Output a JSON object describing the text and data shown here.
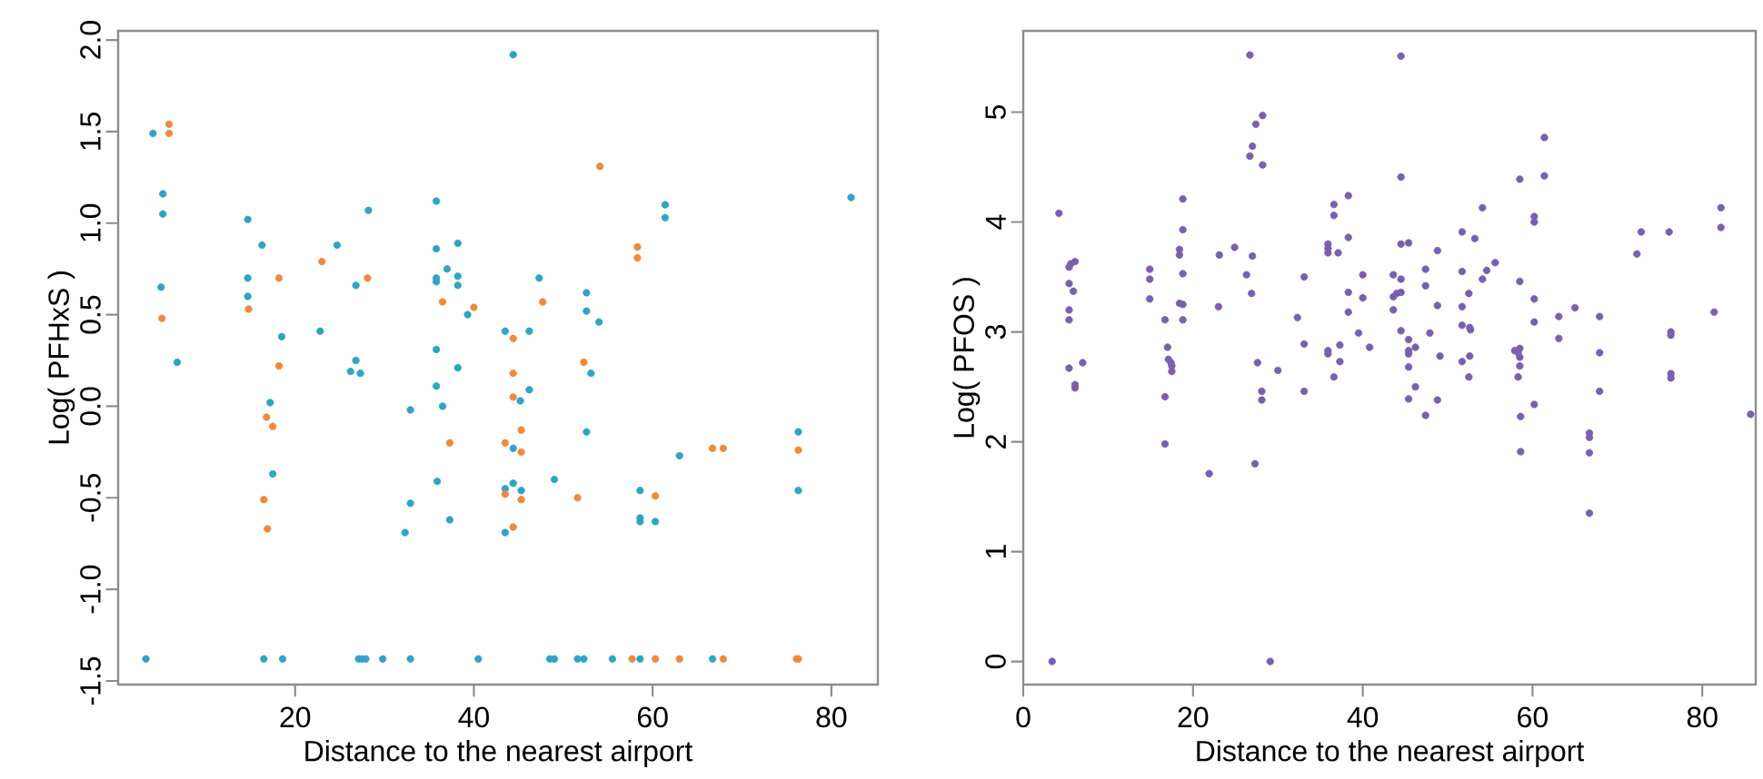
{
  "chart_data": [
    {
      "type": "scatter",
      "xlabel": "Distance to the nearest airport",
      "ylabel": "Log( PFHxS )",
      "marker": "circle",
      "xlim": [
        0.2,
        85.2
      ],
      "ylim": [
        -1.52,
        2.05
      ],
      "xticks": [
        20,
        40,
        60,
        80
      ],
      "yticks": [
        -1.5,
        {
          "value": -1,
          "label": "-1.0"
        },
        -0.5,
        {
          "value": 0,
          "label": "0.0"
        },
        0.5,
        {
          "value": 1,
          "label": "1.0"
        },
        1.5,
        {
          "value": 2,
          "label": "2.0"
        }
      ],
      "series": [
        {
          "color": "#2fa4c4",
          "x": [
            4.1,
            5.2,
            5.2,
            5.0,
            6.8,
            3.3,
            14.7,
            14.7,
            14.7,
            16.3,
            18.5,
            17.2,
            17.5,
            16.5,
            18.6,
            22.8,
            24.7,
            28.2,
            26.8,
            26.2,
            26.8,
            27.3,
            27.1,
            27.5,
            27.9,
            29.8,
            32.9,
            32.9,
            32.9,
            32.3,
            35.8,
            35.8,
            35.8,
            35.8,
            35.8,
            35.8,
            36.5,
            35.9,
            37.3,
            37.0,
            38.2,
            38.2,
            38.2,
            38.2,
            39.3,
            44.4,
            47.3,
            43.5,
            46.2,
            45.2,
            46.2,
            44.4,
            43.5,
            44.4,
            45.3,
            43.5,
            49.0,
            52.6,
            52.6,
            54.0,
            53.1,
            52.6,
            61.4,
            61.4,
            63.0,
            58.6,
            58.6,
            58.6,
            60.3,
            76.3,
            76.3,
            82.2,
            40.5,
            48.5,
            49.0,
            51.6,
            52.3,
            55.5,
            58.6,
            66.7
          ],
          "values": [
            1.49,
            1.16,
            1.05,
            0.65,
            0.24,
            -1.38,
            1.02,
            0.7,
            0.6,
            0.88,
            0.38,
            0.02,
            -0.37,
            -1.38,
            -1.38,
            0.41,
            0.88,
            1.07,
            0.66,
            0.19,
            0.25,
            0.18,
            -1.38,
            -1.38,
            -1.38,
            -1.38,
            -1.38,
            -0.02,
            -0.53,
            -0.69,
            1.12,
            0.86,
            0.7,
            0.68,
            0.31,
            0.11,
            0.0,
            -0.41,
            -0.62,
            0.75,
            0.89,
            0.71,
            0.66,
            0.21,
            0.5,
            1.92,
            0.7,
            0.41,
            0.41,
            0.03,
            0.09,
            -0.23,
            -0.45,
            -0.42,
            -0.46,
            -0.69,
            -0.4,
            0.62,
            0.52,
            0.46,
            0.18,
            -0.14,
            1.1,
            1.03,
            -0.27,
            -0.46,
            -0.61,
            -0.63,
            -0.63,
            -0.14,
            -0.46,
            1.14,
            -1.38,
            -1.38,
            -1.38,
            -1.38,
            -1.38,
            -1.38,
            -1.38,
            -1.38
          ]
        },
        {
          "color": "#f0893b",
          "x": [
            5.9,
            5.9,
            5.1,
            14.8,
            18.2,
            18.2,
            16.8,
            17.5,
            16.5,
            16.9,
            23.0,
            28.1,
            36.5,
            37.3,
            40.0,
            54.1,
            58.3,
            58.3,
            47.7,
            44.4,
            44.4,
            44.4,
            45.3,
            45.3,
            43.5,
            43.5,
            45.3,
            44.4,
            52.3,
            51.6,
            60.3,
            66.7,
            67.9,
            76.3,
            57.7,
            60.3,
            63.0,
            67.9,
            76.1,
            76.3
          ],
          "values": [
            1.54,
            1.49,
            0.48,
            0.53,
            0.7,
            0.22,
            -0.06,
            -0.11,
            -0.51,
            -0.67,
            0.79,
            0.7,
            0.57,
            -0.2,
            0.54,
            1.31,
            0.87,
            0.81,
            0.57,
            0.37,
            0.18,
            0.05,
            -0.13,
            -0.25,
            -0.2,
            -0.48,
            -0.51,
            -0.66,
            0.24,
            -0.5,
            -0.49,
            -0.23,
            -0.23,
            -0.24,
            -1.38,
            -1.38,
            -1.38,
            -1.38,
            -1.38,
            -1.38
          ]
        }
      ]
    },
    {
      "type": "scatter",
      "xlabel": "Distance to the nearest airport",
      "ylabel": "Log( PFOS )",
      "marker": "circle",
      "xlim": [
        0,
        86.3
      ],
      "ylim": [
        -0.21,
        5.74
      ],
      "xticks": [
        0,
        20,
        40,
        60,
        80
      ],
      "yticks": [
        0,
        1,
        2,
        3,
        4,
        5
      ],
      "series": [
        {
          "color": "#7a5fb0",
          "x": [
            3.4,
            4.2,
            5.6,
            6.1,
            5.4,
            5.4,
            5.9,
            5.4,
            5.4,
            5.4,
            7.0,
            6.1,
            6.1,
            14.9,
            14.9,
            14.9,
            16.7,
            17.0,
            17.1,
            17.4,
            17.5,
            17.5,
            16.7,
            16.7,
            18.8,
            18.8,
            18.4,
            18.4,
            18.8,
            18.4,
            18.8,
            18.8,
            21.9,
            23.1,
            23.0,
            24.9,
            26.3,
            27.0,
            26.9,
            26.7,
            26.7,
            27.0,
            27.4,
            28.2,
            28.2,
            27.3,
            27.6,
            28.1,
            28.1,
            29.1,
            30.0,
            32.3,
            33.1,
            33.1,
            33.1,
            36.6,
            36.6,
            38.3,
            35.9,
            35.9,
            35.9,
            37.1,
            38.3,
            38.3,
            38.3,
            40.0,
            40.0,
            39.5,
            35.9,
            35.9,
            37.3,
            37.3,
            36.6,
            40.8,
            44.5,
            44.5,
            44.5,
            45.4,
            43.6,
            44.5,
            43.6,
            44.0,
            44.5,
            43.6,
            44.5,
            45.4,
            46.2,
            45.4,
            45.4,
            45.4,
            46.2,
            45.4,
            47.4,
            47.4,
            47.4,
            47.9,
            48.8,
            48.8,
            49.1,
            48.8,
            51.7,
            51.7,
            51.7,
            52.5,
            51.7,
            52.6,
            52.7,
            51.7,
            52.6,
            52.5,
            53.2,
            54.1,
            54.1,
            54.6,
            55.6,
            58.5,
            58.5,
            57.9,
            58.3,
            58.5,
            58.5,
            58.5,
            58.3,
            58.6,
            58.6,
            61.4,
            61.4,
            60.2,
            60.2,
            60.2,
            60.2,
            60.2,
            63.1,
            63.1,
            65.0,
            67.9,
            67.9,
            67.9,
            66.7,
            66.7,
            66.7,
            66.7,
            72.3,
            72.8,
            76.1,
            76.3,
            76.3,
            76.3,
            76.3,
            81.4,
            82.2,
            82.2,
            85.7
          ],
          "values": [
            0.0,
            4.08,
            3.62,
            3.64,
            3.59,
            3.44,
            3.37,
            3.2,
            3.11,
            2.67,
            2.72,
            2.52,
            2.49,
            3.57,
            3.48,
            3.3,
            3.11,
            2.86,
            2.75,
            2.72,
            2.69,
            2.64,
            2.41,
            1.98,
            4.21,
            3.93,
            3.75,
            3.7,
            3.53,
            3.26,
            3.25,
            3.11,
            1.71,
            3.7,
            3.23,
            3.77,
            3.52,
            3.69,
            3.35,
            5.52,
            4.6,
            4.69,
            4.89,
            4.97,
            4.52,
            1.8,
            2.72,
            2.46,
            2.38,
            0.0,
            2.65,
            3.13,
            3.5,
            2.89,
            2.46,
            4.16,
            4.06,
            4.24,
            3.8,
            3.76,
            3.72,
            3.72,
            3.86,
            3.36,
            3.18,
            3.52,
            3.31,
            2.99,
            2.83,
            2.8,
            2.88,
            2.73,
            2.59,
            2.86,
            5.51,
            4.41,
            3.8,
            3.81,
            3.52,
            3.48,
            3.32,
            3.35,
            3.36,
            3.2,
            3.01,
            2.93,
            2.86,
            2.83,
            2.8,
            2.68,
            2.5,
            2.39,
            2.24,
            3.57,
            3.42,
            2.99,
            3.74,
            3.24,
            2.78,
            2.38,
            3.91,
            3.55,
            3.23,
            3.35,
            3.06,
            3.04,
            3.02,
            2.73,
            2.78,
            2.59,
            3.85,
            4.13,
            3.48,
            3.56,
            3.63,
            4.39,
            3.46,
            2.83,
            2.81,
            2.85,
            2.77,
            2.69,
            2.59,
            2.23,
            1.91,
            4.77,
            4.42,
            4.05,
            4.0,
            3.3,
            3.09,
            2.34,
            3.14,
            2.94,
            3.22,
            3.14,
            2.81,
            2.46,
            2.08,
            2.04,
            1.9,
            1.35,
            3.71,
            3.91,
            3.91,
            3.0,
            2.97,
            2.62,
            2.58,
            3.18,
            4.13,
            3.95,
            2.25
          ]
        }
      ]
    }
  ]
}
